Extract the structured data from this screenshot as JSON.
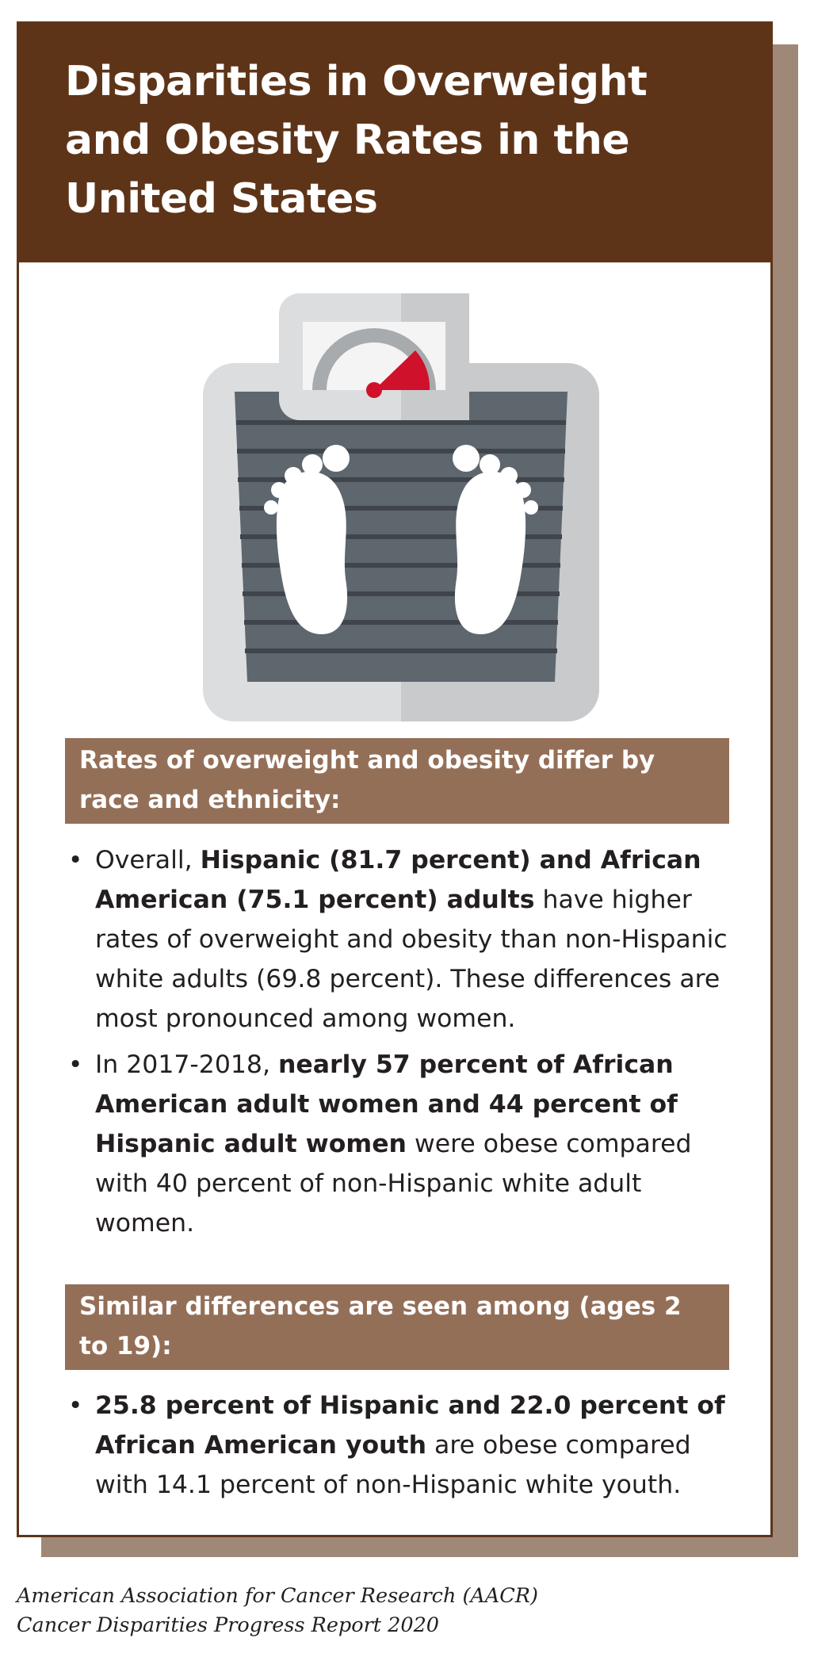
{
  "header": {
    "title": "Disparities in Overweight and Obesity Rates in the United States"
  },
  "illustration": {
    "icon": "bathroom-scale-icon",
    "colors": {
      "frame": "#d9dadc",
      "pad": "#5e666e",
      "needle": "#d0112b",
      "dial": "#a7abae"
    }
  },
  "section1": {
    "heading": "Rates of overweight and obesity differ by race and ethnicity:",
    "bullets": [
      {
        "pre": "Overall, ",
        "bold": "Hispanic (81.7 percent) and African American (75.1 percent) adults",
        "post": " have higher rates of overweight and obesity than non-Hispanic white adults (69.8 percent). These differences are most pronounced among women."
      },
      {
        "pre": "In 2017-2018, ",
        "bold": "nearly 57 percent of African American adult women and 44 percent of Hispanic adult women",
        "post": " were obese compared with 40 percent of non-Hispanic white adult women."
      }
    ]
  },
  "section2": {
    "heading": "Similar differences are seen among (ages 2 to 19):",
    "bullets": [
      {
        "pre": "",
        "bold": "25.8 percent of Hispanic and 22.0 percent of African American youth",
        "post": " are obese compared with 14.1 percent of non-Hispanic white youth."
      }
    ]
  },
  "bullet_marker": "•",
  "footer": {
    "line1": "American Association for Cancer Research (AACR)",
    "line2": "Cancer Disparities Progress Report 2020"
  },
  "colors": {
    "header_bg": "#5e3418",
    "band_bg": "#946f58",
    "shadow": "#a08878"
  }
}
